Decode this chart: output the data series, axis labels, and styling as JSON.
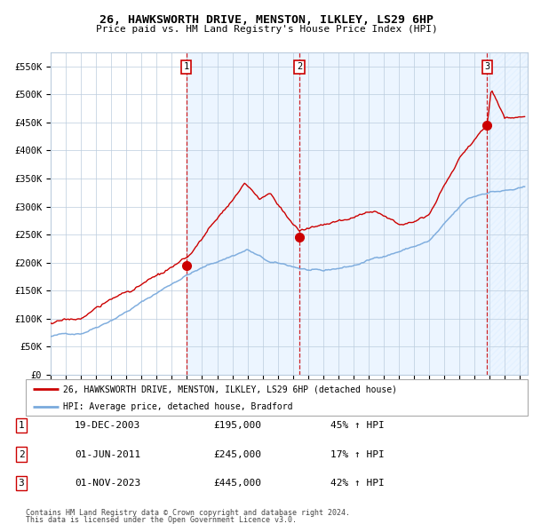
{
  "title": "26, HAWKSWORTH DRIVE, MENSTON, ILKLEY, LS29 6HP",
  "subtitle": "Price paid vs. HM Land Registry's House Price Index (HPI)",
  "xlim_start": 1995.0,
  "xlim_end": 2026.5,
  "ylim_min": 0,
  "ylim_max": 575000,
  "yticks": [
    0,
    50000,
    100000,
    150000,
    200000,
    250000,
    300000,
    350000,
    400000,
    450000,
    500000,
    550000
  ],
  "ytick_labels": [
    "£0",
    "£50K",
    "£100K",
    "£150K",
    "£200K",
    "£250K",
    "£300K",
    "£350K",
    "£400K",
    "£450K",
    "£500K",
    "£550K"
  ],
  "transactions": [
    {
      "num": 1,
      "date": "19-DEC-2003",
      "price": 195000,
      "pct": "45%",
      "year": 2003.96
    },
    {
      "num": 2,
      "date": "01-JUN-2011",
      "price": 245000,
      "pct": "17%",
      "year": 2011.42
    },
    {
      "num": 3,
      "date": "01-NOV-2023",
      "price": 445000,
      "pct": "42%",
      "year": 2023.83
    }
  ],
  "legend_label_red": "26, HAWKSWORTH DRIVE, MENSTON, ILKLEY, LS29 6HP (detached house)",
  "legend_label_blue": "HPI: Average price, detached house, Bradford",
  "footer_line1": "Contains HM Land Registry data © Crown copyright and database right 2024.",
  "footer_line2": "This data is licensed under the Open Government Licence v3.0.",
  "red_color": "#cc0000",
  "blue_color": "#7aaadd",
  "bg_shaded": "#ddeeff",
  "grid_color": "#bbccdd",
  "vline_color": "#cc0000",
  "label_box_color": "#cc0000",
  "fig_width": 6.0,
  "fig_height": 5.9,
  "dpi": 100
}
